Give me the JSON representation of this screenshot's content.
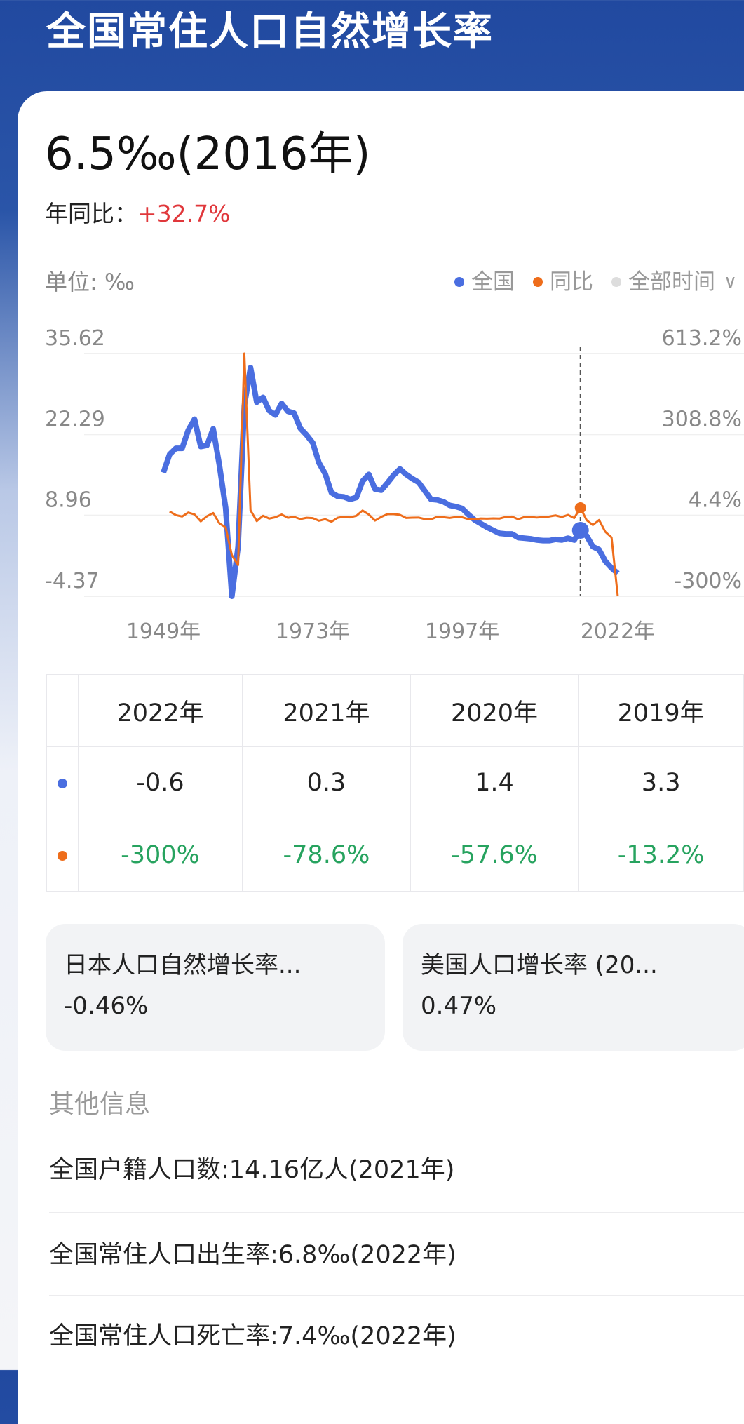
{
  "header": {
    "title": "全国常住人口自然增长率"
  },
  "summary": {
    "value": "6.5‰(2016年)",
    "yoy_label": "年同比：",
    "yoy_value": "+32.7%"
  },
  "chart_header": {
    "unit": "单位: ‰",
    "legend": [
      {
        "label": "全国",
        "color": "#4a6ee0"
      },
      {
        "label": "同比",
        "color": "#ee6d1b"
      }
    ],
    "range_select": "全部时间",
    "range_dot_color": "#dddddd"
  },
  "chart_data": {
    "type": "line",
    "x_tick_labels": [
      "1949年",
      "1973年",
      "1997年",
      "2022年"
    ],
    "x_ticks": [
      1949,
      1973,
      1997,
      2022
    ],
    "left_axis": {
      "tick_labels": [
        "35.62",
        "22.29",
        "8.96",
        "-4.37"
      ],
      "range": [
        -4.37,
        35.62
      ]
    },
    "right_axis": {
      "tick_labels": [
        "613.2%",
        "308.8%",
        "4.4%",
        "-300%"
      ],
      "range": [
        -300,
        613.2
      ]
    },
    "highlight_year": 2016,
    "x": [
      1949,
      1950,
      1951,
      1952,
      1953,
      1954,
      1955,
      1956,
      1957,
      1958,
      1959,
      1960,
      1961,
      1962,
      1963,
      1964,
      1965,
      1966,
      1967,
      1968,
      1969,
      1970,
      1971,
      1972,
      1973,
      1974,
      1975,
      1976,
      1977,
      1978,
      1979,
      1980,
      1981,
      1982,
      1983,
      1984,
      1985,
      1986,
      1987,
      1988,
      1989,
      1990,
      1991,
      1992,
      1993,
      1994,
      1995,
      1996,
      1997,
      1998,
      1999,
      2000,
      2001,
      2002,
      2003,
      2004,
      2005,
      2006,
      2007,
      2008,
      2009,
      2010,
      2011,
      2012,
      2013,
      2014,
      2015,
      2016,
      2017,
      2018,
      2019,
      2020,
      2021,
      2022
    ],
    "series": [
      {
        "name": "全国",
        "axis": "left",
        "color": "#4a6ee0",
        "values": [
          16.0,
          19.0,
          20.0,
          20.0,
          23.0,
          24.8,
          20.3,
          20.5,
          23.2,
          17.2,
          10.2,
          -4.6,
          3.8,
          27.0,
          33.3,
          27.6,
          28.4,
          26.2,
          25.5,
          27.4,
          26.1,
          25.8,
          23.3,
          22.2,
          20.9,
          17.6,
          15.8,
          12.7,
          12.1,
          12.0,
          11.6,
          11.9,
          14.6,
          15.7,
          13.3,
          13.1,
          14.3,
          15.6,
          16.6,
          15.7,
          15.0,
          14.4,
          13.0,
          11.6,
          11.5,
          11.2,
          10.6,
          10.4,
          10.1,
          9.1,
          8.2,
          7.6,
          7.0,
          6.5,
          6.0,
          5.9,
          5.9,
          5.3,
          5.2,
          5.1,
          4.9,
          4.8,
          4.8,
          5.0,
          4.9,
          5.2,
          4.9,
          6.5,
          5.6,
          3.8,
          3.3,
          1.4,
          0.3,
          -0.6
        ]
      },
      {
        "name": "同比",
        "axis": "right",
        "color": "#ee6d1b",
        "values": [
          null,
          18.8,
          5.3,
          0,
          15.0,
          7.8,
          -18.1,
          1.0,
          13.2,
          -25.9,
          -40.7,
          -145.1,
          -182.6,
          613.2,
          23.3,
          -17.1,
          2.9,
          -7.7,
          -2.7,
          7.5,
          -4.7,
          -1.1,
          -9.7,
          -4.7,
          -5.9,
          -15.8,
          -10.2,
          -19.6,
          -4.7,
          -0.8,
          -3.3,
          2.6,
          22.7,
          7.5,
          -15.3,
          -1.5,
          9.2,
          9.1,
          6.4,
          -5.4,
          -4.5,
          -4.0,
          -9.7,
          -10.8,
          -0.9,
          -2.6,
          -5.4,
          -1.9,
          -2.9,
          -9.9,
          -9.9,
          -7.3,
          -7.9,
          -7.1,
          -7.7,
          -1.7,
          0,
          -10.2,
          -1.9,
          -1.9,
          -3.9,
          -2.0,
          0,
          4.2,
          -2.0,
          6.1,
          -5.8,
          32.7,
          -13.8,
          -32.1,
          -13.2,
          -57.6,
          -78.6,
          -300
        ]
      }
    ]
  },
  "table": {
    "headers": [
      "2022年",
      "2021年",
      "2020年",
      "2019年"
    ],
    "rows": [
      {
        "color": "#4a6ee0",
        "values": [
          "-0.6",
          "0.3",
          "1.4",
          "3.3"
        ]
      },
      {
        "color": "#ee6d1b",
        "values": [
          "-300%",
          "-78.6%",
          "-57.6%",
          "-13.2%"
        ]
      }
    ]
  },
  "related": [
    {
      "title": "日本人口自然增长率...",
      "value": "-0.46%"
    },
    {
      "title": "美国人口增长率 (20...",
      "value": "0.47%"
    }
  ],
  "other": {
    "title": "其他信息",
    "items": [
      "全国户籍人口数:14.16亿人(2021年)",
      "全国常住人口出生率:6.8‰(2022年)",
      "全国常住人口死亡率:7.4‰(2022年)"
    ]
  }
}
